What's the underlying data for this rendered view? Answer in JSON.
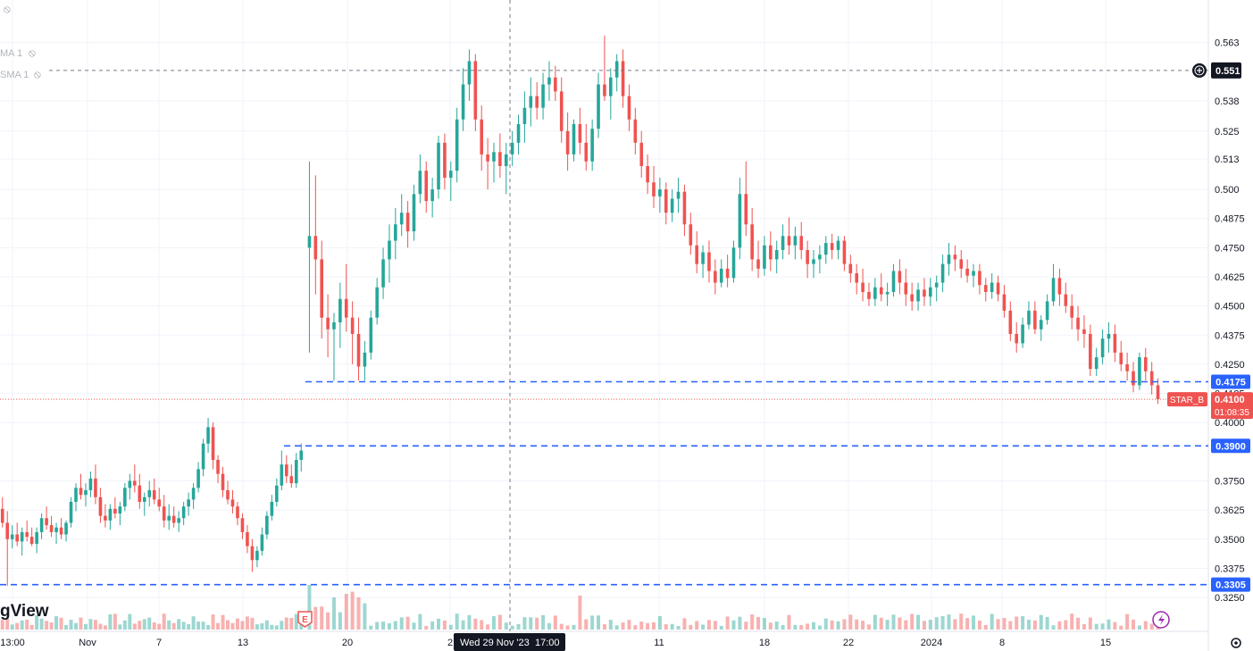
{
  "brand": {
    "text": "gView"
  },
  "indicators": [
    {
      "label": "MA 1",
      "visibility_icon": "eye-off-icon"
    },
    {
      "label": "SMA 1",
      "visibility_icon": "eye-off-icon"
    }
  ],
  "top_left_icon": "eye-off-icon",
  "settings_icon": "gear-icon",
  "crosshair": {
    "x_label": "Wed 29 Nov '23",
    "x_time": "17:00",
    "y_label": "0.551",
    "plus_icon": "plus-circle-icon"
  },
  "symbol_badge": "STAR_B",
  "last_price_label": "0.4100",
  "countdown_label": "01:08:35",
  "horizontal_levels": [
    {
      "label": "0.4175",
      "value": 0.4175,
      "color": "#2962ff"
    },
    {
      "label": "0.3900",
      "value": 0.39,
      "color": "#2962ff"
    },
    {
      "label": "0.3305",
      "value": 0.3305,
      "color": "#2962ff"
    }
  ],
  "event_markers": [
    {
      "type": "earnings",
      "label": "E"
    },
    {
      "type": "lightning",
      "icon": "lightning-icon"
    }
  ],
  "colors": {
    "up": "#26a69a",
    "down": "#ef5350",
    "level": "#2962ff",
    "grid": "#f0f3fa"
  },
  "chart_data": {
    "type": "candlestick",
    "y_ticks": [
      "0.563",
      "0.538",
      "0.525",
      "0.513",
      "0.500",
      "0.4875",
      "0.4750",
      "0.4625",
      "0.4500",
      "0.4375",
      "0.4250",
      "0.4125",
      "0.4000",
      "0.3750",
      "0.3625",
      "0.3500",
      "0.3375",
      "0.3250"
    ],
    "y_range": [
      0.3185,
      0.5705
    ],
    "x_ticks": [
      "13:00",
      "Nov",
      "7",
      "13",
      "20",
      "2",
      "11",
      "18",
      "22",
      "2024",
      "8",
      "15"
    ],
    "last_price": 0.41,
    "crosshair_price": 0.551,
    "candles": [
      [
        0.363,
        0.368,
        0.355,
        0.357
      ],
      [
        0.357,
        0.362,
        0.33,
        0.35
      ],
      [
        0.35,
        0.356,
        0.346,
        0.352
      ],
      [
        0.352,
        0.357,
        0.347,
        0.349
      ],
      [
        0.349,
        0.355,
        0.343,
        0.353
      ],
      [
        0.353,
        0.358,
        0.349,
        0.351
      ],
      [
        0.351,
        0.355,
        0.347,
        0.348
      ],
      [
        0.348,
        0.355,
        0.344,
        0.353
      ],
      [
        0.353,
        0.361,
        0.35,
        0.359
      ],
      [
        0.359,
        0.364,
        0.354,
        0.356
      ],
      [
        0.356,
        0.36,
        0.351,
        0.353
      ],
      [
        0.353,
        0.357,
        0.348,
        0.355
      ],
      [
        0.355,
        0.359,
        0.35,
        0.352
      ],
      [
        0.352,
        0.358,
        0.349,
        0.357
      ],
      [
        0.357,
        0.368,
        0.355,
        0.366
      ],
      [
        0.366,
        0.374,
        0.362,
        0.372
      ],
      [
        0.372,
        0.378,
        0.367,
        0.369
      ],
      [
        0.369,
        0.374,
        0.364,
        0.371
      ],
      [
        0.371,
        0.379,
        0.368,
        0.376
      ],
      [
        0.376,
        0.382,
        0.365,
        0.368
      ],
      [
        0.368,
        0.372,
        0.357,
        0.36
      ],
      [
        0.36,
        0.365,
        0.355,
        0.358
      ],
      [
        0.358,
        0.365,
        0.354,
        0.363
      ],
      [
        0.363,
        0.368,
        0.359,
        0.361
      ],
      [
        0.361,
        0.366,
        0.356,
        0.364
      ],
      [
        0.364,
        0.374,
        0.362,
        0.372
      ],
      [
        0.372,
        0.378,
        0.367,
        0.375
      ],
      [
        0.375,
        0.382,
        0.37,
        0.373
      ],
      [
        0.373,
        0.378,
        0.363,
        0.366
      ],
      [
        0.366,
        0.37,
        0.36,
        0.368
      ],
      [
        0.368,
        0.375,
        0.364,
        0.371
      ],
      [
        0.371,
        0.376,
        0.365,
        0.367
      ],
      [
        0.367,
        0.372,
        0.362,
        0.364
      ],
      [
        0.364,
        0.369,
        0.355,
        0.358
      ],
      [
        0.358,
        0.365,
        0.354,
        0.36
      ],
      [
        0.36,
        0.364,
        0.355,
        0.357
      ],
      [
        0.357,
        0.362,
        0.353,
        0.359
      ],
      [
        0.359,
        0.366,
        0.356,
        0.364
      ],
      [
        0.364,
        0.37,
        0.36,
        0.367
      ],
      [
        0.367,
        0.374,
        0.363,
        0.372
      ],
      [
        0.372,
        0.383,
        0.37,
        0.38
      ],
      [
        0.38,
        0.393,
        0.377,
        0.391
      ],
      [
        0.391,
        0.402,
        0.387,
        0.398
      ],
      [
        0.398,
        0.4,
        0.38,
        0.384
      ],
      [
        0.384,
        0.386,
        0.374,
        0.378
      ],
      [
        0.378,
        0.381,
        0.368,
        0.371
      ],
      [
        0.371,
        0.375,
        0.365,
        0.367
      ],
      [
        0.367,
        0.371,
        0.361,
        0.364
      ],
      [
        0.364,
        0.366,
        0.356,
        0.359
      ],
      [
        0.359,
        0.361,
        0.35,
        0.353
      ],
      [
        0.353,
        0.356,
        0.344,
        0.347
      ],
      [
        0.347,
        0.35,
        0.336,
        0.341
      ],
      [
        0.341,
        0.347,
        0.338,
        0.345
      ],
      [
        0.345,
        0.355,
        0.343,
        0.352
      ],
      [
        0.352,
        0.362,
        0.35,
        0.36
      ],
      [
        0.36,
        0.369,
        0.358,
        0.366
      ],
      [
        0.366,
        0.376,
        0.364,
        0.373
      ],
      [
        0.373,
        0.388,
        0.371,
        0.382
      ],
      [
        0.382,
        0.386,
        0.374,
        0.377
      ],
      [
        0.377,
        0.382,
        0.372,
        0.374
      ],
      [
        0.374,
        0.387,
        0.372,
        0.384
      ],
      [
        0.384,
        0.391,
        0.379,
        0.388
      ],
      [
        0.475,
        0.512,
        0.43,
        0.48
      ],
      [
        0.48,
        0.506,
        0.455,
        0.47
      ],
      [
        0.47,
        0.478,
        0.436,
        0.445
      ],
      [
        0.445,
        0.455,
        0.428,
        0.44
      ],
      [
        0.44,
        0.447,
        0.418,
        0.443
      ],
      [
        0.443,
        0.46,
        0.432,
        0.453
      ],
      [
        0.453,
        0.468,
        0.439,
        0.445
      ],
      [
        0.445,
        0.452,
        0.425,
        0.438
      ],
      [
        0.438,
        0.445,
        0.418,
        0.424
      ],
      [
        0.424,
        0.435,
        0.418,
        0.43
      ],
      [
        0.43,
        0.448,
        0.427,
        0.445
      ],
      [
        0.445,
        0.462,
        0.442,
        0.458
      ],
      [
        0.458,
        0.475,
        0.453,
        0.47
      ],
      [
        0.47,
        0.485,
        0.46,
        0.478
      ],
      [
        0.478,
        0.492,
        0.47,
        0.485
      ],
      [
        0.485,
        0.498,
        0.48,
        0.49
      ],
      [
        0.49,
        0.495,
        0.475,
        0.482
      ],
      [
        0.482,
        0.502,
        0.478,
        0.498
      ],
      [
        0.498,
        0.515,
        0.494,
        0.508
      ],
      [
        0.508,
        0.512,
        0.49,
        0.495
      ],
      [
        0.495,
        0.505,
        0.488,
        0.5
      ],
      [
        0.5,
        0.523,
        0.496,
        0.52
      ],
      [
        0.52,
        0.524,
        0.5,
        0.505
      ],
      [
        0.505,
        0.512,
        0.495,
        0.508
      ],
      [
        0.508,
        0.535,
        0.503,
        0.53
      ],
      [
        0.53,
        0.552,
        0.525,
        0.545
      ],
      [
        0.545,
        0.56,
        0.538,
        0.555
      ],
      [
        0.555,
        0.558,
        0.525,
        0.53
      ],
      [
        0.53,
        0.536,
        0.508,
        0.515
      ],
      [
        0.515,
        0.522,
        0.5,
        0.512
      ],
      [
        0.512,
        0.52,
        0.503,
        0.516
      ],
      [
        0.516,
        0.524,
        0.505,
        0.51
      ],
      [
        0.51,
        0.52,
        0.498,
        0.515
      ],
      [
        0.515,
        0.525,
        0.51,
        0.52
      ],
      [
        0.52,
        0.532,
        0.515,
        0.528
      ],
      [
        0.528,
        0.542,
        0.52,
        0.535
      ],
      [
        0.535,
        0.548,
        0.527,
        0.54
      ],
      [
        0.54,
        0.546,
        0.53,
        0.535
      ],
      [
        0.535,
        0.55,
        0.53,
        0.545
      ],
      [
        0.545,
        0.555,
        0.538,
        0.548
      ],
      [
        0.548,
        0.553,
        0.538,
        0.542
      ],
      [
        0.542,
        0.548,
        0.52,
        0.525
      ],
      [
        0.525,
        0.533,
        0.508,
        0.515
      ],
      [
        0.515,
        0.53,
        0.512,
        0.528
      ],
      [
        0.528,
        0.535,
        0.515,
        0.52
      ],
      [
        0.52,
        0.528,
        0.508,
        0.512
      ],
      [
        0.512,
        0.53,
        0.508,
        0.526
      ],
      [
        0.526,
        0.55,
        0.522,
        0.545
      ],
      [
        0.545,
        0.566,
        0.538,
        0.54
      ],
      [
        0.54,
        0.552,
        0.53,
        0.548
      ],
      [
        0.548,
        0.558,
        0.542,
        0.555
      ],
      [
        0.555,
        0.56,
        0.535,
        0.54
      ],
      [
        0.54,
        0.545,
        0.525,
        0.53
      ],
      [
        0.53,
        0.535,
        0.515,
        0.52
      ],
      [
        0.52,
        0.525,
        0.505,
        0.51
      ],
      [
        0.51,
        0.515,
        0.498,
        0.503
      ],
      [
        0.503,
        0.51,
        0.492,
        0.497
      ],
      [
        0.497,
        0.505,
        0.49,
        0.5
      ],
      [
        0.5,
        0.503,
        0.485,
        0.49
      ],
      [
        0.49,
        0.5,
        0.486,
        0.496
      ],
      [
        0.496,
        0.505,
        0.49,
        0.499
      ],
      [
        0.499,
        0.502,
        0.48,
        0.485
      ],
      [
        0.485,
        0.49,
        0.472,
        0.476
      ],
      [
        0.476,
        0.482,
        0.464,
        0.468
      ],
      [
        0.468,
        0.476,
        0.462,
        0.473
      ],
      [
        0.473,
        0.478,
        0.46,
        0.465
      ],
      [
        0.465,
        0.47,
        0.455,
        0.46
      ],
      [
        0.46,
        0.47,
        0.458,
        0.466
      ],
      [
        0.466,
        0.472,
        0.458,
        0.462
      ],
      [
        0.462,
        0.478,
        0.46,
        0.475
      ],
      [
        0.475,
        0.505,
        0.47,
        0.498
      ],
      [
        0.498,
        0.512,
        0.48,
        0.485
      ],
      [
        0.485,
        0.492,
        0.465,
        0.47
      ],
      [
        0.47,
        0.478,
        0.462,
        0.466
      ],
      [
        0.466,
        0.48,
        0.463,
        0.476
      ],
      [
        0.476,
        0.482,
        0.465,
        0.47
      ],
      [
        0.47,
        0.478,
        0.464,
        0.474
      ],
      [
        0.474,
        0.485,
        0.47,
        0.48
      ],
      [
        0.48,
        0.488,
        0.472,
        0.476
      ],
      [
        0.476,
        0.484,
        0.47,
        0.48
      ],
      [
        0.48,
        0.486,
        0.47,
        0.474
      ],
      [
        0.474,
        0.478,
        0.462,
        0.468
      ],
      [
        0.468,
        0.474,
        0.462,
        0.47
      ],
      [
        0.47,
        0.476,
        0.464,
        0.472
      ],
      [
        0.472,
        0.48,
        0.468,
        0.477
      ],
      [
        0.477,
        0.481,
        0.47,
        0.474
      ],
      [
        0.474,
        0.48,
        0.47,
        0.478
      ],
      [
        0.478,
        0.48,
        0.465,
        0.468
      ],
      [
        0.468,
        0.472,
        0.46,
        0.464
      ],
      [
        0.464,
        0.468,
        0.455,
        0.46
      ],
      [
        0.46,
        0.466,
        0.452,
        0.456
      ],
      [
        0.456,
        0.46,
        0.45,
        0.453
      ],
      [
        0.453,
        0.462,
        0.45,
        0.458
      ],
      [
        0.458,
        0.464,
        0.452,
        0.455
      ],
      [
        0.455,
        0.46,
        0.45,
        0.456
      ],
      [
        0.456,
        0.468,
        0.454,
        0.465
      ],
      [
        0.465,
        0.47,
        0.455,
        0.46
      ],
      [
        0.46,
        0.466,
        0.45,
        0.455
      ],
      [
        0.455,
        0.46,
        0.448,
        0.452
      ],
      [
        0.452,
        0.46,
        0.448,
        0.457
      ],
      [
        0.457,
        0.462,
        0.45,
        0.454
      ],
      [
        0.454,
        0.462,
        0.45,
        0.458
      ],
      [
        0.458,
        0.463,
        0.452,
        0.46
      ],
      [
        0.46,
        0.472,
        0.456,
        0.468
      ],
      [
        0.468,
        0.477,
        0.463,
        0.472
      ],
      [
        0.472,
        0.476,
        0.465,
        0.47
      ],
      [
        0.47,
        0.474,
        0.462,
        0.466
      ],
      [
        0.466,
        0.47,
        0.46,
        0.463
      ],
      [
        0.463,
        0.468,
        0.458,
        0.465
      ],
      [
        0.465,
        0.468,
        0.455,
        0.459
      ],
      [
        0.459,
        0.462,
        0.452,
        0.456
      ],
      [
        0.456,
        0.464,
        0.453,
        0.46
      ],
      [
        0.46,
        0.463,
        0.452,
        0.455
      ],
      [
        0.455,
        0.459,
        0.445,
        0.448
      ],
      [
        0.448,
        0.452,
        0.435,
        0.438
      ],
      [
        0.438,
        0.443,
        0.43,
        0.434
      ],
      [
        0.434,
        0.445,
        0.432,
        0.442
      ],
      [
        0.442,
        0.452,
        0.44,
        0.448
      ],
      [
        0.448,
        0.452,
        0.438,
        0.44
      ],
      [
        0.44,
        0.446,
        0.435,
        0.444
      ],
      [
        0.444,
        0.455,
        0.442,
        0.452
      ],
      [
        0.452,
        0.468,
        0.45,
        0.462
      ],
      [
        0.462,
        0.466,
        0.45,
        0.455
      ],
      [
        0.455,
        0.46,
        0.447,
        0.45
      ],
      [
        0.45,
        0.455,
        0.44,
        0.445
      ],
      [
        0.445,
        0.45,
        0.435,
        0.44
      ],
      [
        0.44,
        0.446,
        0.432,
        0.438
      ],
      [
        0.438,
        0.442,
        0.42,
        0.423
      ],
      [
        0.423,
        0.432,
        0.42,
        0.428
      ],
      [
        0.428,
        0.44,
        0.425,
        0.436
      ],
      [
        0.436,
        0.443,
        0.43,
        0.438
      ],
      [
        0.438,
        0.442,
        0.426,
        0.43
      ],
      [
        0.43,
        0.435,
        0.422,
        0.425
      ],
      [
        0.425,
        0.43,
        0.418,
        0.422
      ],
      [
        0.422,
        0.426,
        0.413,
        0.416
      ],
      [
        0.416,
        0.43,
        0.414,
        0.428
      ],
      [
        0.428,
        0.432,
        0.418,
        0.422
      ],
      [
        0.422,
        0.426,
        0.412,
        0.416
      ],
      [
        0.416,
        0.419,
        0.408,
        0.41
      ]
    ],
    "volume_bars": "decorative histogram along bottom"
  }
}
